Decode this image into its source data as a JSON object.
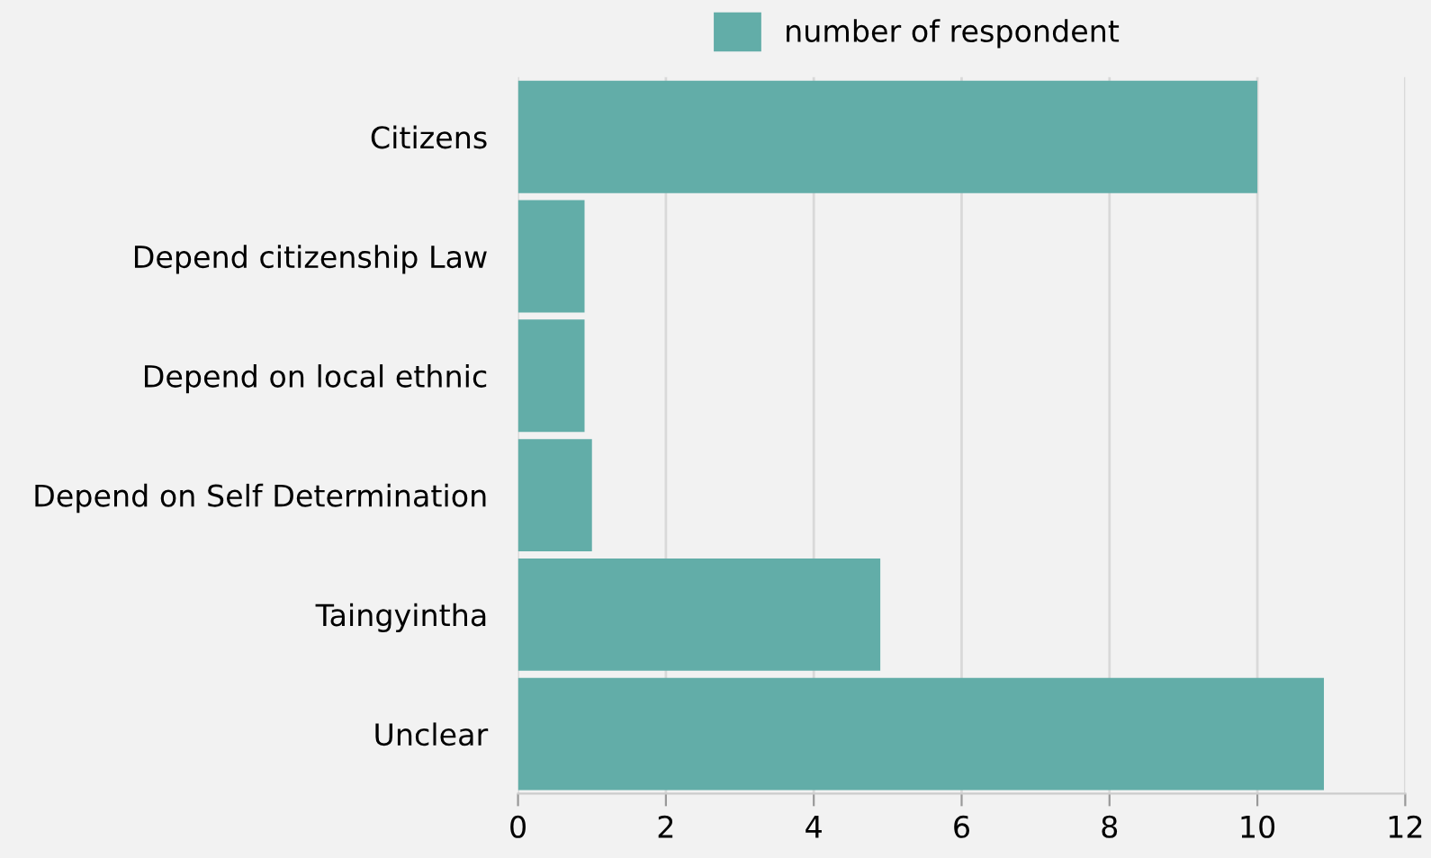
{
  "chart_data": {
    "type": "bar",
    "orientation": "horizontal",
    "categories": [
      "Citizens",
      "Depend citizenship Law",
      "Depend on local ethnic",
      "Depend on Self Determination",
      "Taingyintha",
      "Unclear"
    ],
    "series": [
      {
        "name": "number of respondent",
        "color": "#62ada8",
        "values": [
          10,
          0.9,
          0.9,
          1,
          4.9,
          10.9
        ]
      }
    ],
    "xlim": [
      0,
      12
    ],
    "xticks": [
      0,
      2,
      4,
      6,
      8,
      10,
      12
    ],
    "grid": "x",
    "legend": "top"
  }
}
